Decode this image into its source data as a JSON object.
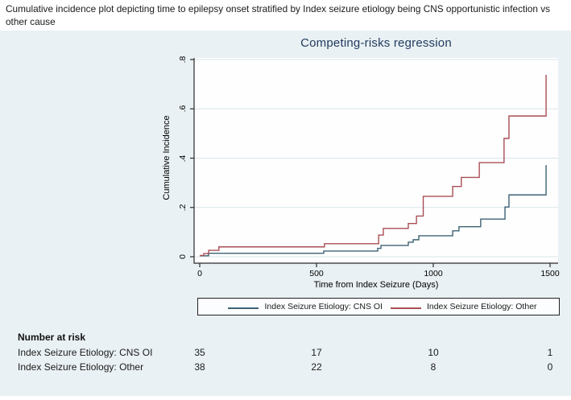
{
  "caption": "Cumulative incidence plot depicting time to epilepsy onset stratified by Index seizure etiology being CNS opportunistic infection vs other cause",
  "chart_data": {
    "type": "line",
    "subtype": "step-cumulative-incidence",
    "title": "Competing-risks regression",
    "xlabel": "Time from Index Seizure (Days)",
    "ylabel": "Cumulative Incidence",
    "xlim": [
      0,
      1500
    ],
    "ylim": [
      0,
      0.8
    ],
    "x_ticks": [
      0,
      500,
      1000,
      1500
    ],
    "x_tick_labels": [
      "0",
      "500",
      "1000",
      "1500"
    ],
    "y_ticks": [
      0,
      0.2,
      0.4,
      0.6,
      0.8
    ],
    "y_tick_labels": [
      "0",
      ".2",
      ".4",
      ".6",
      ".8"
    ],
    "grid": true,
    "legend_position": "bottom",
    "series": [
      {
        "name": "Index Seizure Etiology: CNS OI",
        "color": "#3d6374",
        "points": [
          [
            0,
            0.004
          ],
          [
            38,
            0.014
          ],
          [
            531,
            0.023
          ],
          [
            762,
            0.034
          ],
          [
            776,
            0.046
          ],
          [
            893,
            0.059
          ],
          [
            914,
            0.069
          ],
          [
            938,
            0.085
          ],
          [
            1083,
            0.105
          ],
          [
            1110,
            0.122
          ],
          [
            1203,
            0.153
          ],
          [
            1307,
            0.202
          ],
          [
            1324,
            0.251
          ],
          [
            1483,
            0.372
          ]
        ]
      },
      {
        "name": "Index Seizure Etiology: Other",
        "color": "#a94e55",
        "points": [
          [
            0,
            0.005
          ],
          [
            17,
            0.013
          ],
          [
            38,
            0.026
          ],
          [
            82,
            0.04
          ],
          [
            534,
            0.053
          ],
          [
            766,
            0.088
          ],
          [
            786,
            0.115
          ],
          [
            893,
            0.135
          ],
          [
            928,
            0.165
          ],
          [
            957,
            0.245
          ],
          [
            1083,
            0.285
          ],
          [
            1120,
            0.322
          ],
          [
            1197,
            0.382
          ],
          [
            1303,
            0.48
          ],
          [
            1324,
            0.571
          ],
          [
            1483,
            0.738
          ]
        ]
      }
    ]
  },
  "risk_table": {
    "header": "Number at risk",
    "time_points": [
      0,
      500,
      1000,
      1500
    ],
    "rows": [
      {
        "label": "Index Seizure Etiology: CNS OI",
        "values": [
          "35",
          "17",
          "10",
          "1"
        ]
      },
      {
        "label": "Index Seizure Etiology: Other",
        "values": [
          "38",
          "22",
          "8",
          "0"
        ]
      }
    ]
  },
  "colors": {
    "figure_background": "#eaf1f4",
    "plot_background": "#fefefe",
    "gridline": "#d9e5ea",
    "axis": "#2a2a2a",
    "title": "#1f3a5e",
    "cns_oi_line": "#3d6374",
    "other_line": "#a94e55"
  }
}
